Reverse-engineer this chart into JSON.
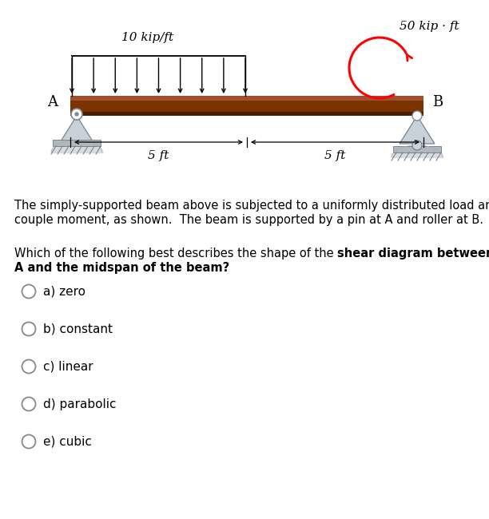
{
  "title_load": "10 kip/ft",
  "title_moment": "50 kip · ft",
  "label_A": "A",
  "label_B": "B",
  "label_5ft_left": "5 ft",
  "label_5ft_right": "5 ft",
  "beam_color_main": "#7B3300",
  "beam_color_light": "#A05030",
  "beam_color_dark": "#4A1F00",
  "background_color": "#ffffff",
  "paragraph1_line1": "The simply-supported beam above is subjected to a uniformly distributed load and",
  "paragraph1_line2": "couple moment, as shown.  The beam is supported by a pin at A and roller at B.",
  "question_normal": "Which of the following best describes the shape of the ",
  "question_bold1": "shear diagram between point",
  "question_bold2": "A and the midspan of the beam?",
  "choices": [
    "a) zero",
    "b) constant",
    "c) linear",
    "d) parabolic",
    "e) cubic"
  ]
}
